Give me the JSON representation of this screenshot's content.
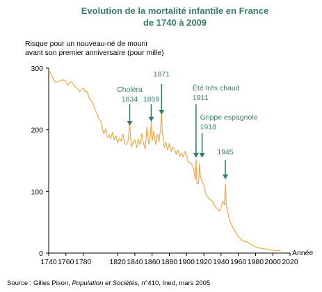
{
  "chart_data": {
    "type": "line",
    "title_line1": "Evolution de la mortalité infantile en France",
    "title_line2": "de 1740 à 2009",
    "ylabel_line1": "Risque pour un nouveau-né de mourir",
    "ylabel_line2": "avant son premier anniversaire (pour mille)",
    "xlabel": "Année",
    "xlim": [
      1740,
      2020
    ],
    "ylim": [
      0,
      300
    ],
    "x_ticks": [
      1740,
      1760,
      1780,
      1820,
      1840,
      1860,
      1880,
      1900,
      1920,
      1940,
      1960,
      1980,
      2000,
      2020
    ],
    "y_ticks": [
      0,
      100,
      200,
      300
    ],
    "line_color": "#f2a33a",
    "annotation_color": "#3a7a6a",
    "series": [
      {
        "x": [
          1740,
          1742,
          1744,
          1746,
          1748,
          1750,
          1752,
          1754,
          1756,
          1758,
          1760,
          1762,
          1764,
          1766,
          1768,
          1770,
          1772,
          1774,
          1776,
          1778,
          1780,
          1782,
          1784,
          1786,
          1788,
          1790,
          1792,
          1794,
          1796,
          1798,
          1800,
          1802,
          1804,
          1806,
          1808,
          1810,
          1812,
          1814,
          1816,
          1818,
          1820,
          1822,
          1824,
          1826,
          1828,
          1830,
          1832,
          1834,
          1836,
          1838,
          1840,
          1842,
          1844,
          1846,
          1848,
          1850,
          1852,
          1854,
          1856,
          1858,
          1859,
          1860,
          1862,
          1864,
          1866,
          1868,
          1870,
          1871,
          1872,
          1874,
          1876,
          1878,
          1880,
          1882,
          1884,
          1886,
          1888,
          1890,
          1892,
          1894,
          1896,
          1898,
          1900,
          1902,
          1904,
          1906,
          1908,
          1910,
          1911,
          1912,
          1914,
          1915,
          1916,
          1918,
          1920,
          1922,
          1924,
          1926,
          1928,
          1930,
          1932,
          1934,
          1936,
          1938,
          1940,
          1942,
          1944,
          1945,
          1946,
          1948,
          1950,
          1955,
          1960,
          1965,
          1970,
          1975,
          1980,
          1985,
          1990,
          1995,
          2000,
          2005,
          2009
        ],
        "y": [
          297,
          292,
          286,
          281,
          277,
          278,
          279,
          280,
          281,
          280,
          279,
          272,
          276,
          278,
          275,
          270,
          268,
          266,
          262,
          265,
          268,
          262,
          263,
          256,
          248,
          246,
          240,
          232,
          226,
          218,
          215,
          204,
          193,
          201,
          188,
          192,
          185,
          196,
          183,
          190,
          179,
          186,
          182,
          193,
          178,
          176,
          181,
          206,
          172,
          180,
          184,
          171,
          185,
          176,
          194,
          178,
          169,
          205,
          177,
          190,
          214,
          182,
          198,
          176,
          193,
          181,
          204,
          228,
          195,
          171,
          180,
          167,
          178,
          165,
          172,
          168,
          160,
          167,
          157,
          162,
          156,
          165,
          158,
          148,
          146,
          144,
          138,
          120,
          152,
          112,
          114,
          145,
          124,
          116,
          110,
          96,
          92,
          88,
          86,
          84,
          78,
          74,
          72,
          68,
          74,
          84,
          78,
          112,
          80,
          64,
          52,
          38,
          27,
          20,
          18,
          14,
          10,
          8,
          7,
          6,
          4.5,
          4,
          3.8
        ]
      }
    ],
    "annotations": [
      {
        "lines": [
          "Choléra",
          "1834"
        ],
        "year": 1834
      },
      {
        "lines": [
          "1859"
        ],
        "year": 1859
      },
      {
        "lines": [
          "1871"
        ],
        "year": 1871
      },
      {
        "lines": [
          "Été très chaud",
          "1911"
        ],
        "year": 1911
      },
      {
        "lines": [
          "Grippe espagnole",
          "1918"
        ],
        "year": 1918
      },
      {
        "lines": [
          "1945"
        ],
        "year": 1945
      }
    ]
  },
  "source": {
    "prefix": "Source : Gilles Pison, ",
    "publication": "Population et Sociétés",
    "suffix": ", n°410, Ined, mars 2005"
  }
}
